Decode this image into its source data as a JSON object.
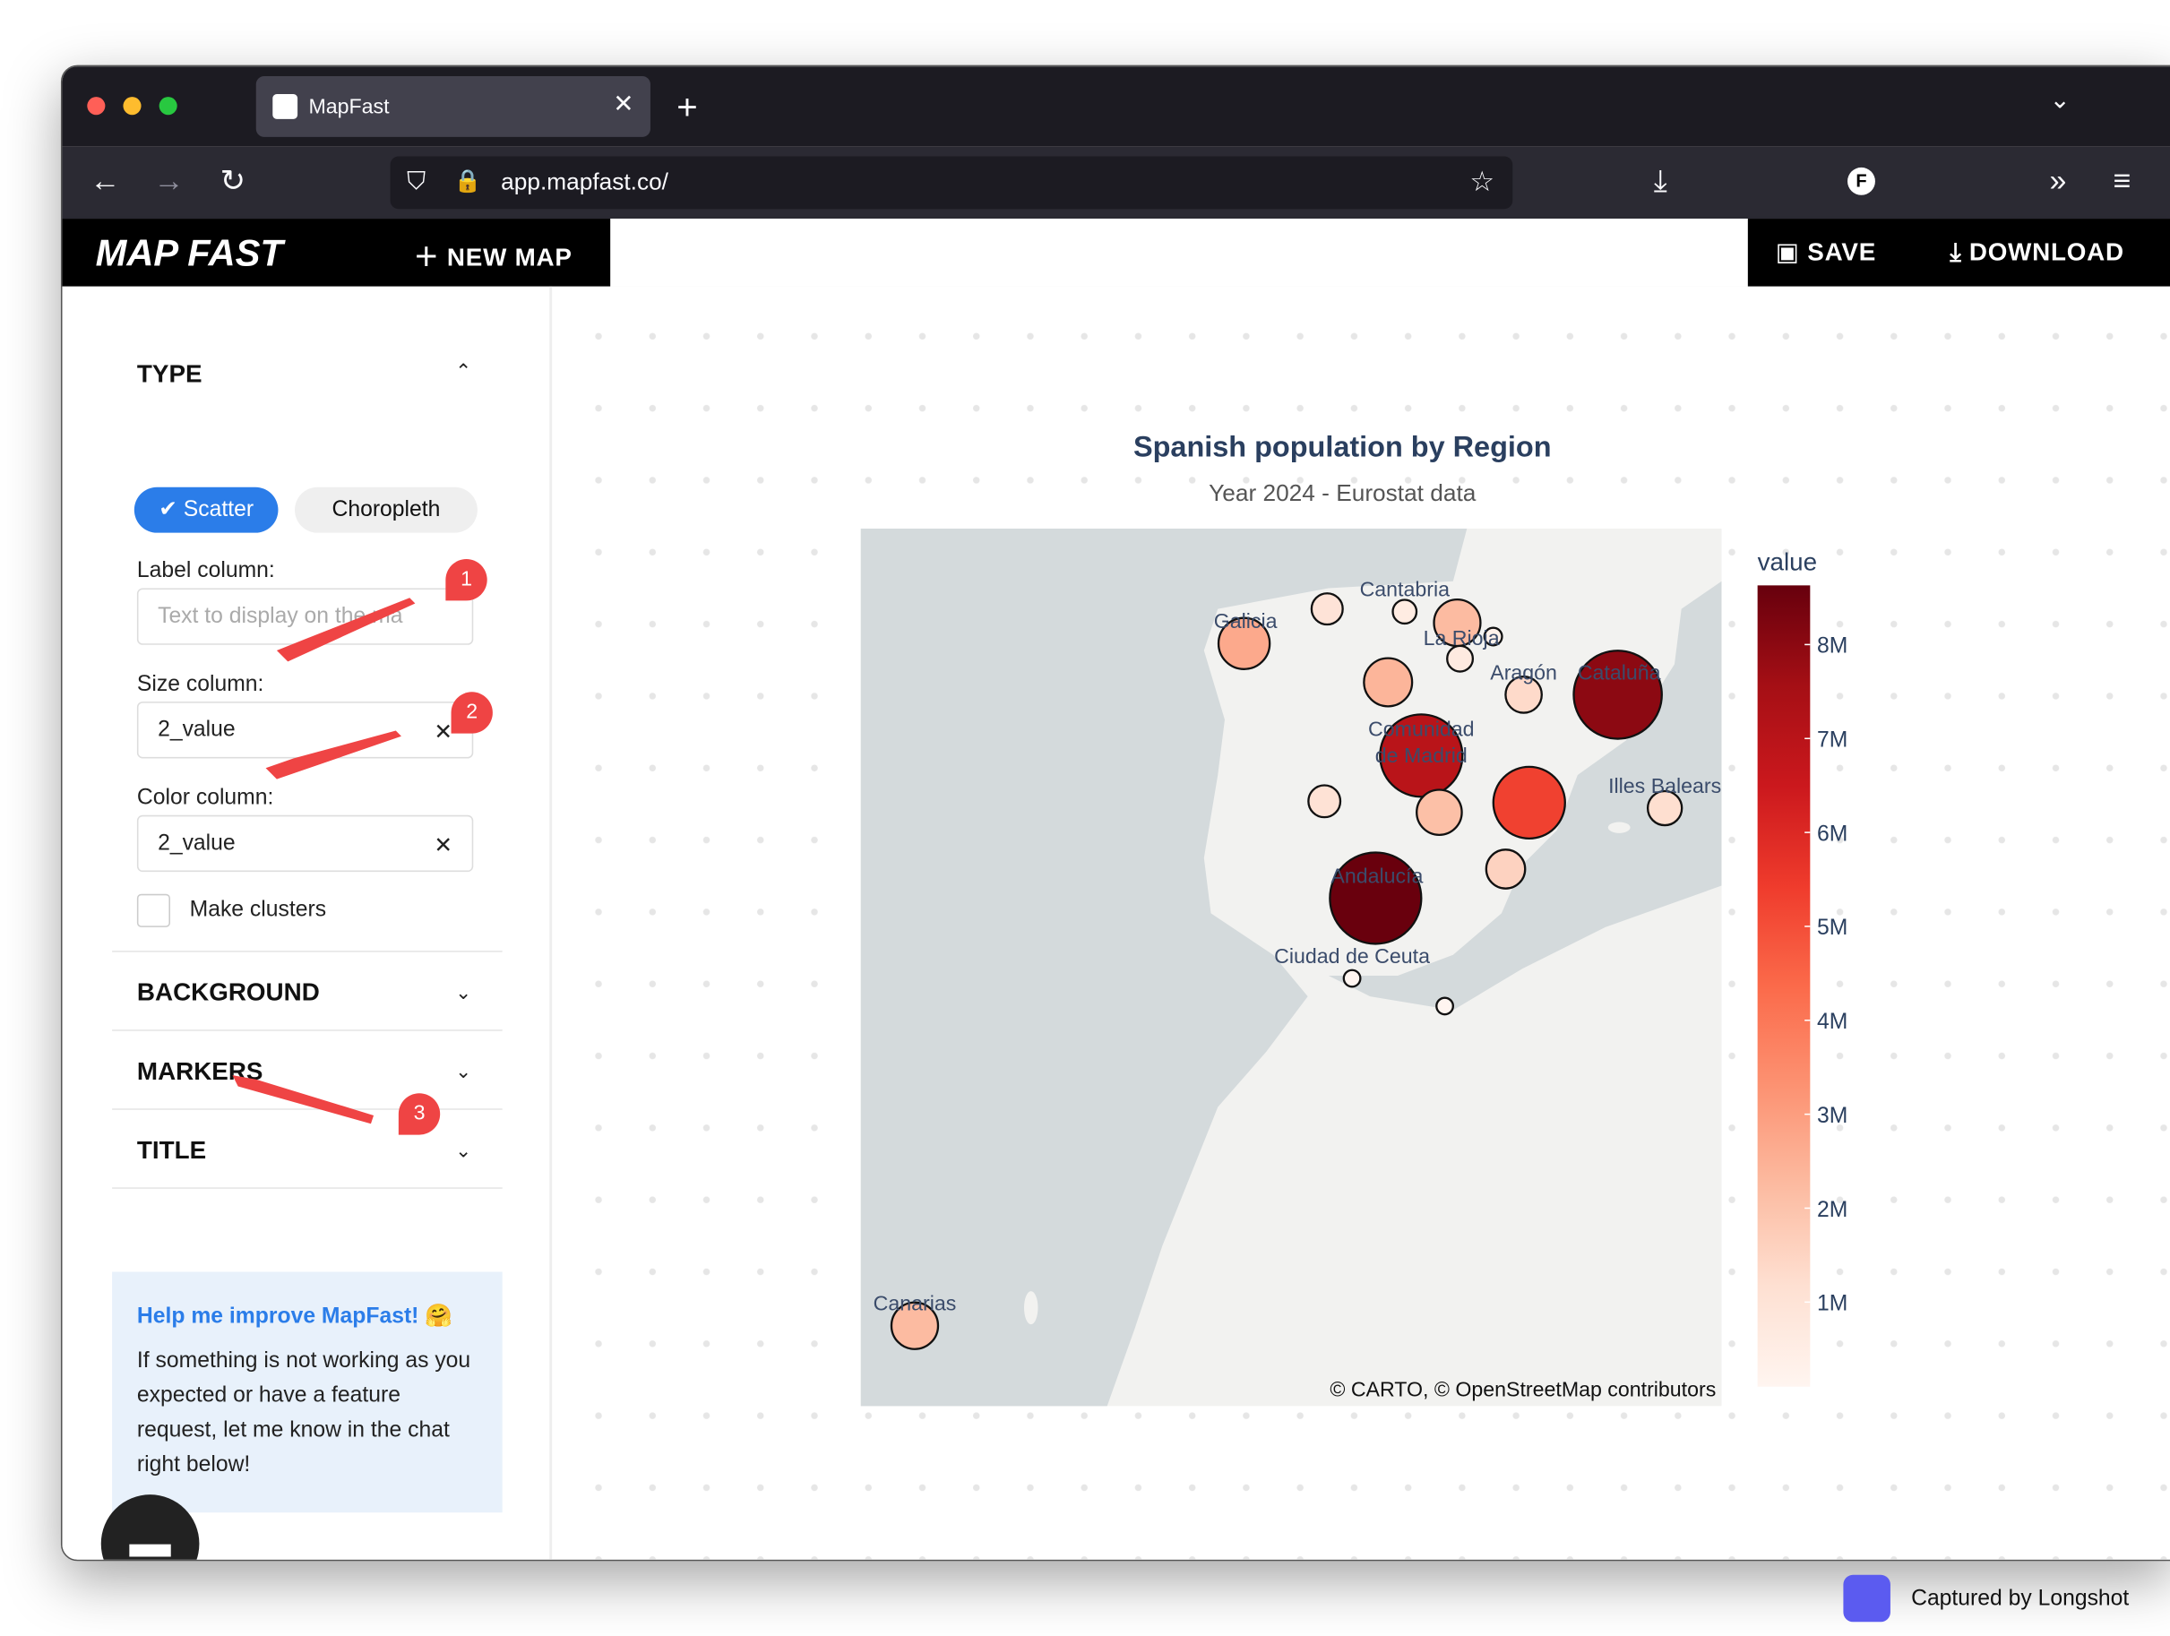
{
  "browser": {
    "tab_title": "MapFast",
    "url_host": "app.mapfast.co/"
  },
  "header": {
    "logo": "MAP FAST",
    "new_map": "NEW MAP",
    "save": "SAVE",
    "download": "DOWNLOAD"
  },
  "sidebar": {
    "type_section": "TYPE",
    "type_options": [
      "Scatter",
      "Choropleth"
    ],
    "label_column": {
      "label": "Label column:",
      "placeholder": "Text to display on the ma"
    },
    "size_column": {
      "label": "Size column:",
      "value": "2_value"
    },
    "color_column": {
      "label": "Color column:",
      "value": "2_value"
    },
    "make_clusters": "Make clusters",
    "sections": [
      "BACKGROUND",
      "MARKERS",
      "TITLE"
    ],
    "help": {
      "title": "Help me improve MapFast! 🤗",
      "body": "If something is not working as you expected or have a feature request, let me know in the chat right below!"
    }
  },
  "annotations": [
    "1",
    "2",
    "3"
  ],
  "map": {
    "title": "Spanish population by Region",
    "subtitle": "Year 2024 - Eurostat data",
    "attribution": "© CARTO, © OpenStreetMap contributors",
    "region_labels": [
      "Galicia",
      "Cantabria",
      "La Rioja",
      "Aragón",
      "Cataluña",
      "Comunidad de Madrid",
      "Illes Balears",
      "Andalucía",
      "Ciudad de Ceuta",
      "Canarias"
    ],
    "values": [
      2700000,
      1000000,
      580000,
      2230000,
      320000,
      680000,
      2390000,
      1350000,
      8000000,
      7000000,
      1050000,
      2100000,
      5300000,
      1200000,
      1560000,
      8600000,
      83000,
      86000,
      2240000
    ],
    "colorbar": {
      "title": "value",
      "lim": [
        100000,
        8630000
      ],
      "ticks": [
        {
          "value": 1000000,
          "label": "1M"
        },
        {
          "value": 2000000,
          "label": "2M"
        },
        {
          "value": 3000000,
          "label": "3M"
        },
        {
          "value": 4000000,
          "label": "4M"
        },
        {
          "value": 5000000,
          "label": "5M"
        },
        {
          "value": 6000000,
          "label": "6M"
        },
        {
          "value": 7000000,
          "label": "7M"
        },
        {
          "value": 8000000,
          "label": "8M"
        }
      ]
    }
  },
  "footer": "Captured by Longshot"
}
